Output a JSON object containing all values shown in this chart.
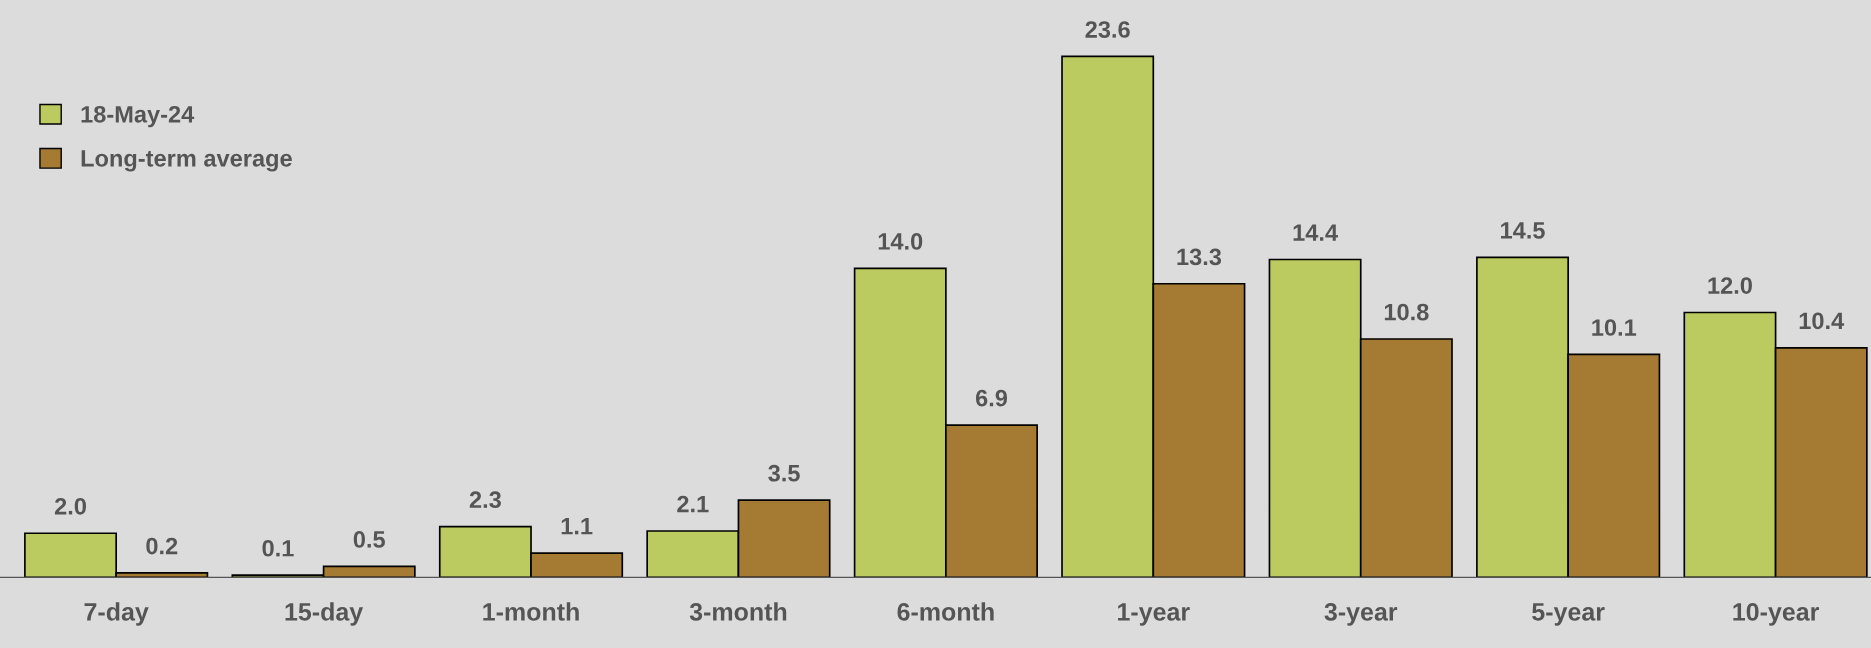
{
  "chart_data": {
    "type": "bar",
    "categories": [
      "7-day",
      "15-day",
      "1-month",
      "3-month",
      "6-month",
      "1-year",
      "3-year",
      "5-year",
      "10-year"
    ],
    "series": [
      {
        "name": "18-May-24",
        "color": "#bccb5f",
        "values": [
          2.0,
          0.1,
          2.3,
          2.1,
          14.0,
          23.6,
          14.4,
          14.5,
          12.0
        ],
        "value_labels": [
          "2.0",
          "0.1",
          "2.3",
          "2.1",
          "14.0",
          "23.6",
          "14.4",
          "14.5",
          "12.0"
        ]
      },
      {
        "name": "Long-term average",
        "color": "#a57a32",
        "values": [
          0.2,
          0.5,
          1.1,
          3.5,
          6.9,
          13.3,
          10.8,
          10.1,
          10.4
        ],
        "value_labels": [
          "0.2",
          "0.5",
          "1.1",
          "3.5",
          "6.9",
          "13.3",
          "10.8",
          "10.1",
          "10.4"
        ]
      }
    ],
    "legend": "top left",
    "grid": false
  }
}
